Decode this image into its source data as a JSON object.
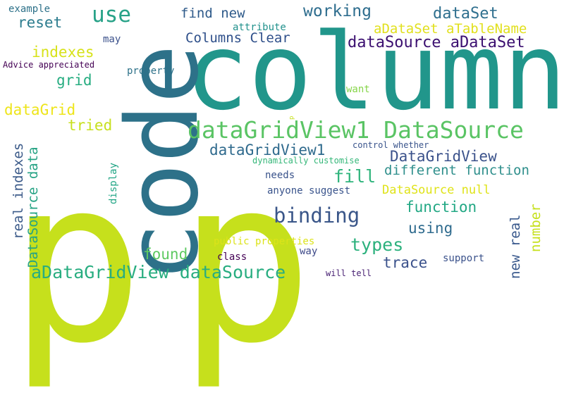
{
  "words": [
    {
      "text": "p",
      "color": "#c6e01c"
    },
    {
      "text": "p",
      "color": "#c6e01c"
    },
    {
      "text": "column",
      "color": "#21968b"
    },
    {
      "text": "code",
      "color": "#2d7189"
    },
    {
      "text": "dataGridView1 DataSource",
      "color": "#5ac464"
    },
    {
      "text": "binding",
      "color": "#3a5689"
    },
    {
      "text": "aDataGridView dataSource",
      "color": "#28ad80"
    },
    {
      "text": "use",
      "color": "#28a288"
    },
    {
      "text": "working",
      "color": "#2e6d8e"
    },
    {
      "text": "dataSet",
      "color": "#2e6f8e"
    },
    {
      "text": "dataSource aDataSet",
      "color": "#3b0f70"
    },
    {
      "text": "aDataSet aTableName",
      "color": "#e1e01e"
    },
    {
      "text": "Columns Clear",
      "color": "#2e4f8a"
    },
    {
      "text": "find new",
      "color": "#2e5a8a"
    },
    {
      "text": "reset",
      "color": "#2c7c8e"
    },
    {
      "text": "indexes",
      "color": "#d7e219"
    },
    {
      "text": "grid",
      "color": "#27ad81"
    },
    {
      "text": "dataGrid",
      "color": "#eee51b"
    },
    {
      "text": "tried",
      "color": "#c8e020"
    },
    {
      "text": "real indexes",
      "color": "#3b5a89"
    },
    {
      "text": "DataSource data",
      "color": "#26a384"
    },
    {
      "text": "dataGridView1",
      "color": "#2f6a8d"
    },
    {
      "text": "DataGridView",
      "color": "#3b528b"
    },
    {
      "text": "different function",
      "color": "#2f8f8c"
    },
    {
      "text": "fill",
      "color": "#2fb47c"
    },
    {
      "text": "number",
      "color": "#c6e01c"
    },
    {
      "text": "DataSource null",
      "color": "#dfe318"
    },
    {
      "text": "function",
      "color": "#22a884"
    },
    {
      "text": "using",
      "color": "#2f6b8e"
    },
    {
      "text": "types",
      "color": "#2cb17d"
    },
    {
      "text": "found",
      "color": "#5ec962"
    },
    {
      "text": "trace",
      "color": "#3a518b"
    },
    {
      "text": "new real",
      "color": "#38588c"
    },
    {
      "text": "example",
      "color": "#2d7189"
    },
    {
      "text": "attribute",
      "color": "#21918c"
    },
    {
      "text": "may",
      "color": "#3b518b"
    },
    {
      "text": "Advice appreciated",
      "color": "#440154"
    },
    {
      "text": "property",
      "color": "#2d7189"
    },
    {
      "text": "want",
      "color": "#86d549"
    },
    {
      "text": "p",
      "color": "#c6e01c"
    },
    {
      "text": "control whether",
      "color": "#3a548c"
    },
    {
      "text": "dynamically customise",
      "color": "#35b779"
    },
    {
      "text": "needs",
      "color": "#3a538b"
    },
    {
      "text": "anyone suggest",
      "color": "#3a548c"
    },
    {
      "text": "display",
      "color": "#21a585"
    },
    {
      "text": "public properties",
      "color": "#dce319"
    },
    {
      "text": "class",
      "color": "#440154"
    },
    {
      "text": "way",
      "color": "#3e4a89"
    },
    {
      "text": "support",
      "color": "#3b528b"
    },
    {
      "text": "will tell",
      "color": "#482173"
    }
  ]
}
